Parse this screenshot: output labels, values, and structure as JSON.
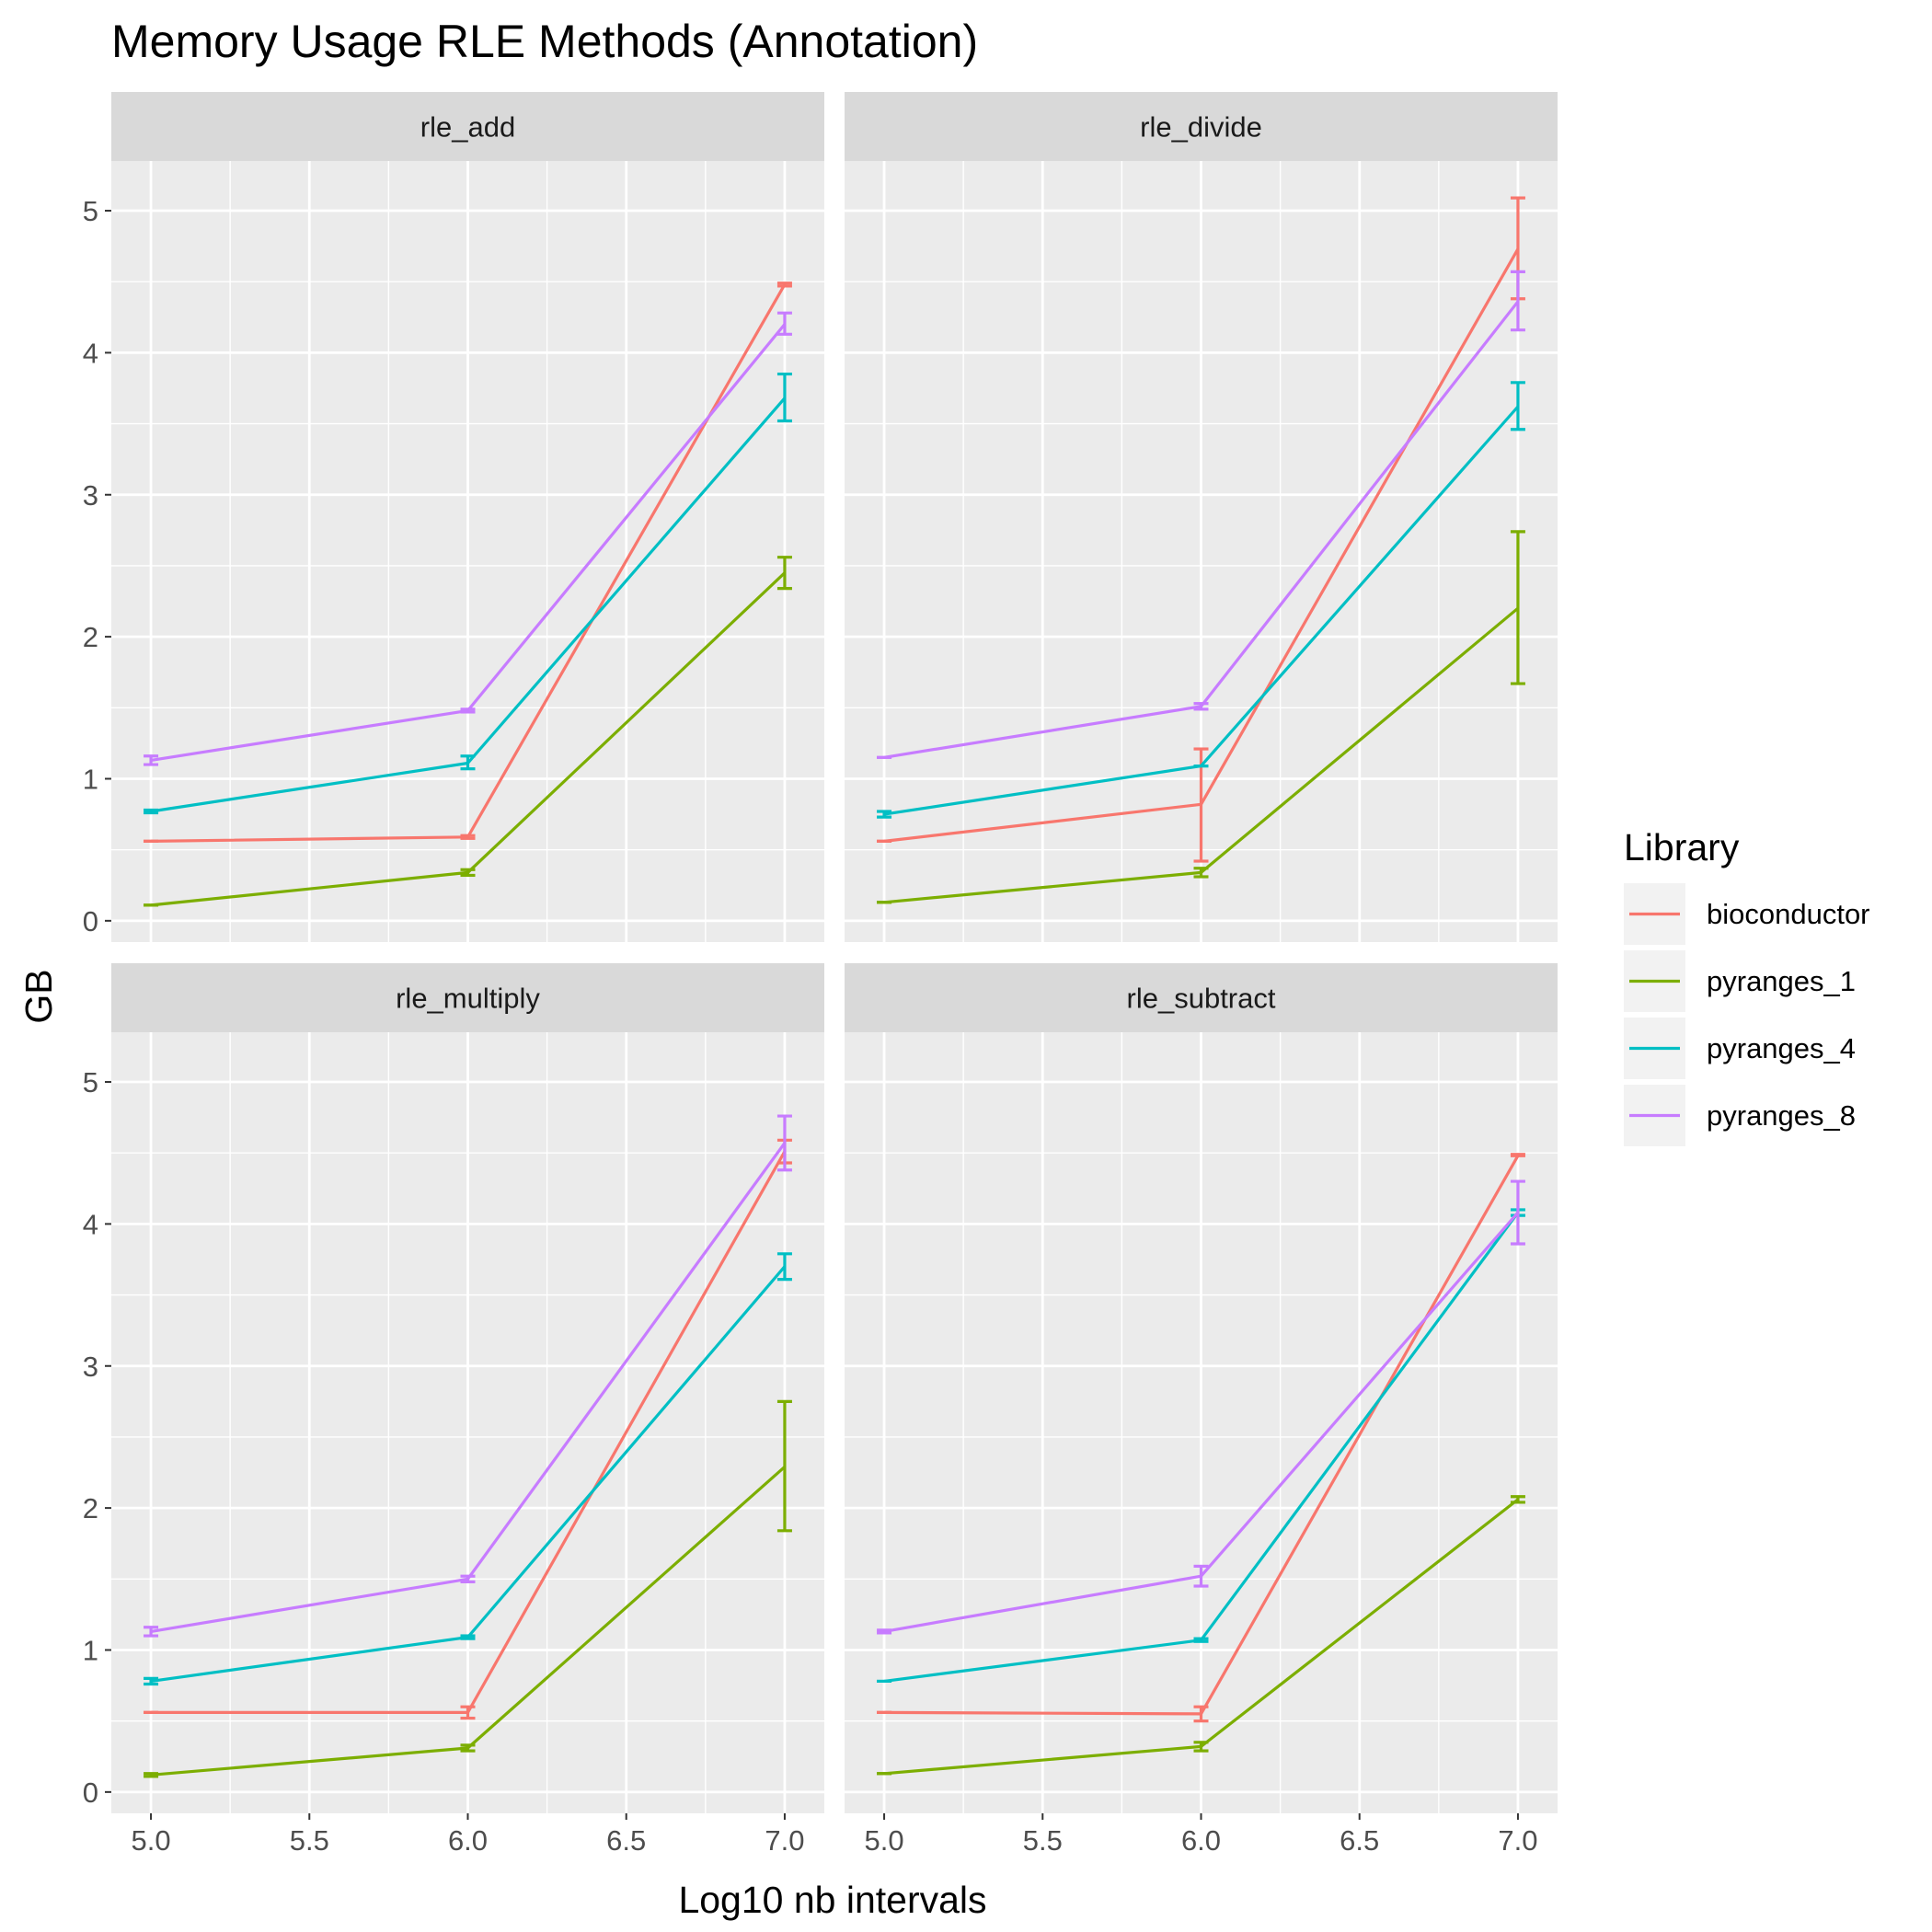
{
  "chart_data": {
    "type": "line",
    "title": "Memory Usage RLE Methods (Annotation)",
    "xlabel": "Log10 nb intervals",
    "ylabel": "GB",
    "xlim": [
      4.875,
      7.125
    ],
    "ylim": [
      -0.15,
      5.35
    ],
    "x_ticks": [
      "5.0",
      "5.5",
      "6.0",
      "6.5",
      "7.0"
    ],
    "y_ticks": [
      "0",
      "1",
      "2",
      "3",
      "4",
      "5"
    ],
    "legend": {
      "title": "Library",
      "placement": "right",
      "entries": [
        "bioconductor",
        "pyranges_1",
        "pyranges_4",
        "pyranges_8"
      ]
    },
    "colors": {
      "bioconductor": "#F8766D",
      "pyranges_1": "#7CAE00",
      "pyranges_4": "#00BFC4",
      "pyranges_8": "#C77CFF"
    },
    "x": [
      5,
      6,
      7
    ],
    "panels": [
      {
        "name": "rle_add",
        "series": [
          {
            "name": "bioconductor",
            "y": [
              0.56,
              0.59,
              4.48
            ],
            "ymin": [
              0.56,
              0.58,
              4.47
            ],
            "ymax": [
              0.56,
              0.6,
              4.49
            ]
          },
          {
            "name": "pyranges_1",
            "y": [
              0.11,
              0.34,
              2.45
            ],
            "ymin": [
              0.11,
              0.32,
              2.34
            ],
            "ymax": [
              0.11,
              0.36,
              2.56
            ]
          },
          {
            "name": "pyranges_4",
            "y": [
              0.77,
              1.11,
              3.68
            ],
            "ymin": [
              0.76,
              1.07,
              3.52
            ],
            "ymax": [
              0.78,
              1.16,
              3.85
            ]
          },
          {
            "name": "pyranges_8",
            "y": [
              1.13,
              1.48,
              4.2
            ],
            "ymin": [
              1.1,
              1.47,
              4.13
            ],
            "ymax": [
              1.16,
              1.49,
              4.28
            ]
          }
        ]
      },
      {
        "name": "rle_divide",
        "series": [
          {
            "name": "bioconductor",
            "y": [
              0.56,
              0.82,
              4.73
            ],
            "ymin": [
              0.56,
              0.42,
              4.38
            ],
            "ymax": [
              0.56,
              1.21,
              5.09
            ]
          },
          {
            "name": "pyranges_1",
            "y": [
              0.13,
              0.34,
              2.2
            ],
            "ymin": [
              0.13,
              0.31,
              1.67
            ],
            "ymax": [
              0.13,
              0.37,
              2.74
            ]
          },
          {
            "name": "pyranges_4",
            "y": [
              0.75,
              1.09,
              3.62
            ],
            "ymin": [
              0.73,
              1.09,
              3.46
            ],
            "ymax": [
              0.77,
              1.09,
              3.79
            ]
          },
          {
            "name": "pyranges_8",
            "y": [
              1.15,
              1.51,
              4.36
            ],
            "ymin": [
              1.15,
              1.49,
              4.16
            ],
            "ymax": [
              1.15,
              1.53,
              4.57
            ]
          }
        ]
      },
      {
        "name": "rle_multiply",
        "series": [
          {
            "name": "bioconductor",
            "y": [
              0.56,
              0.56,
              4.51
            ],
            "ymin": [
              0.56,
              0.52,
              4.43
            ],
            "ymax": [
              0.56,
              0.6,
              4.59
            ]
          },
          {
            "name": "pyranges_1",
            "y": [
              0.12,
              0.31,
              2.29
            ],
            "ymin": [
              0.11,
              0.29,
              1.84
            ],
            "ymax": [
              0.13,
              0.33,
              2.75
            ]
          },
          {
            "name": "pyranges_4",
            "y": [
              0.78,
              1.09,
              3.7
            ],
            "ymin": [
              0.76,
              1.08,
              3.61
            ],
            "ymax": [
              0.8,
              1.1,
              3.79
            ]
          },
          {
            "name": "pyranges_8",
            "y": [
              1.13,
              1.5,
              4.57
            ],
            "ymin": [
              1.1,
              1.48,
              4.38
            ],
            "ymax": [
              1.16,
              1.52,
              4.76
            ]
          }
        ]
      },
      {
        "name": "rle_subtract",
        "series": [
          {
            "name": "bioconductor",
            "y": [
              0.56,
              0.55,
              4.48
            ],
            "ymin": [
              0.56,
              0.5,
              4.48
            ],
            "ymax": [
              0.56,
              0.6,
              4.49
            ]
          },
          {
            "name": "pyranges_1",
            "y": [
              0.13,
              0.32,
              2.06
            ],
            "ymin": [
              0.13,
              0.29,
              2.04
            ],
            "ymax": [
              0.13,
              0.35,
              2.08
            ]
          },
          {
            "name": "pyranges_4",
            "y": [
              0.78,
              1.07,
              4.08
            ],
            "ymin": [
              0.78,
              1.06,
              4.06
            ],
            "ymax": [
              0.78,
              1.08,
              4.1
            ]
          },
          {
            "name": "pyranges_8",
            "y": [
              1.13,
              1.52,
              4.08
            ],
            "ymin": [
              1.12,
              1.45,
              3.86
            ],
            "ymax": [
              1.14,
              1.59,
              4.3
            ]
          }
        ]
      }
    ]
  }
}
